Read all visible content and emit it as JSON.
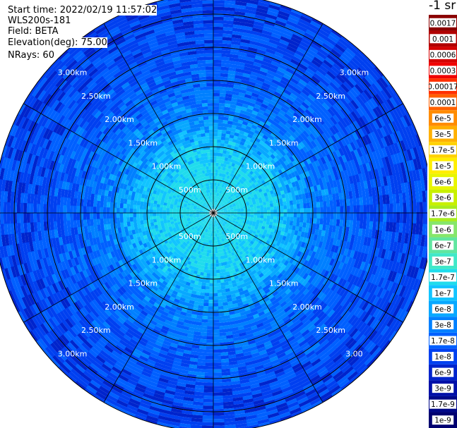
{
  "header": {
    "start_time": "Start time: 2022/02/19 11:57:02",
    "instrument": "WLS200s-181",
    "field": "Field: BETA",
    "elevation": "Elevation(deg): 75.00",
    "nrays": "NRays: 60"
  },
  "colorbar": {
    "title": "-1 sr",
    "labels": [
      "0.0017",
      "0.001",
      "0.0006",
      "0.0003",
      "0.00017",
      "0.0001",
      "6e-5",
      "3e-5",
      "1.7e-5",
      "1e-5",
      "6e-6",
      "3e-6",
      "1.7e-6",
      "1e-6",
      "6e-7",
      "3e-7",
      "1.7e-7",
      "1e-7",
      "6e-8",
      "3e-8",
      "1.7e-8",
      "1e-8",
      "6e-9",
      "3e-9",
      "1.7e-9",
      "1e-9"
    ],
    "colors": [
      "#8b0000",
      "#b00000",
      "#d40000",
      "#f00000",
      "#ff3000",
      "#ff6000",
      "#ff8c00",
      "#ffb000",
      "#ffd200",
      "#ffee00",
      "#e8f500",
      "#c8f000",
      "#a8ec20",
      "#86e66a",
      "#60e6a0",
      "#40e8c8",
      "#20dcec",
      "#12c4ff",
      "#08a8ff",
      "#0080ff",
      "#0060ff",
      "#0040f0",
      "#0024cc",
      "#0010a8",
      "#000888",
      "#000070"
    ]
  },
  "chart_data": {
    "type": "heatmap",
    "projection": "polar (PPI scan)",
    "field": "BETA",
    "elevation_deg": 75.0,
    "nrays": 60,
    "range_rings_km": [
      0.5,
      1.0,
      1.5,
      2.0,
      2.5,
      3.0
    ],
    "range_labels": {
      "upper_left": [
        "3.00km",
        "2.50km",
        "2.00km",
        "1.50km",
        "1.00km",
        "500m"
      ],
      "upper_right": [
        "3.00km",
        "2.50km",
        "2.00km",
        "1.50km",
        "1.00km",
        "500m"
      ],
      "lower_left": [
        "3.00km",
        "2.50km",
        "2.00km",
        "1.50km",
        "1.00km",
        "500m"
      ],
      "lower_right": [
        "3.00",
        "2.50km",
        "2.00km",
        "1.50km",
        "1.00km",
        "500m"
      ]
    },
    "radial_spokes_deg": [
      0,
      30,
      60,
      90,
      120,
      150,
      180,
      210,
      240,
      270,
      300,
      330
    ],
    "max_range_km": 3.3,
    "value_trend": [
      {
        "range_km": 0.2,
        "typical_beta": "1.7e-7"
      },
      {
        "range_km": 0.5,
        "typical_beta": "1.7e-7"
      },
      {
        "range_km": 1.0,
        "typical_beta": "1e-7"
      },
      {
        "range_km": 1.5,
        "typical_beta": "3e-8"
      },
      {
        "range_km": 2.0,
        "typical_beta": "1.7e-8"
      },
      {
        "range_km": 3.0,
        "typical_beta": "1e-8"
      }
    ]
  }
}
